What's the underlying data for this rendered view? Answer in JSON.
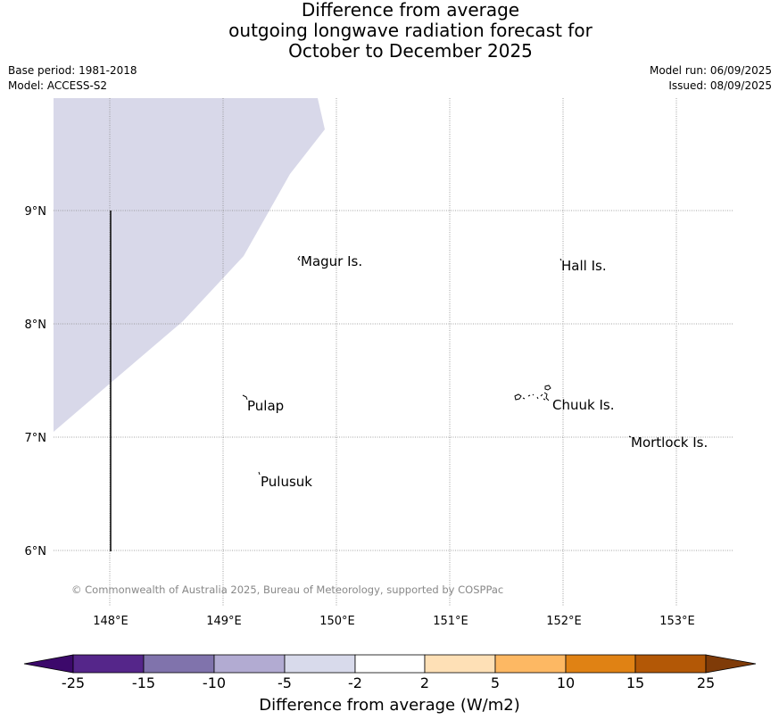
{
  "header": {
    "title_line1": "Difference from average",
    "title_line2": "outgoing longwave radiation forecast for",
    "title_line3": "October to December 2025",
    "base_period": "Base period: 1981-2018",
    "model": "Model: ACCESS-S2",
    "model_run": "Model run: 06/09/2025",
    "issued": "Issued: 08/09/2025"
  },
  "map": {
    "lon_ticks": [
      "148°E",
      "149°E",
      "150°E",
      "151°E",
      "152°E",
      "153°E"
    ],
    "lat_ticks": [
      "9°N",
      "8°N",
      "7°N",
      "6°N"
    ],
    "places": [
      {
        "name": "Magur Is."
      },
      {
        "name": "Hall Is."
      },
      {
        "name": "Pulap"
      },
      {
        "name": "Chuuk Is."
      },
      {
        "name": "Mortlock Is."
      },
      {
        "name": "Pulusuk"
      }
    ],
    "copyright": "© Commonwealth of Australia 2025, Bureau of Meteorology, supported by COSPPac",
    "shaded_category": "-5 to -2",
    "colors": {
      "shade": "#d8d8e9",
      "grid": "#888888",
      "copyright": "#888888"
    }
  },
  "colorbar": {
    "label": "Difference from average (W/m2)",
    "ticks": [
      "-25",
      "-15",
      "-10",
      "-5",
      "-2",
      "2",
      "5",
      "10",
      "15",
      "25"
    ],
    "colors": [
      "#3c096b",
      "#55268a",
      "#8073ac",
      "#b2abd2",
      "#d8daeb",
      "#ffffff",
      "#fee0b6",
      "#fdb863",
      "#e08214",
      "#b35806",
      "#7f3b08"
    ]
  }
}
